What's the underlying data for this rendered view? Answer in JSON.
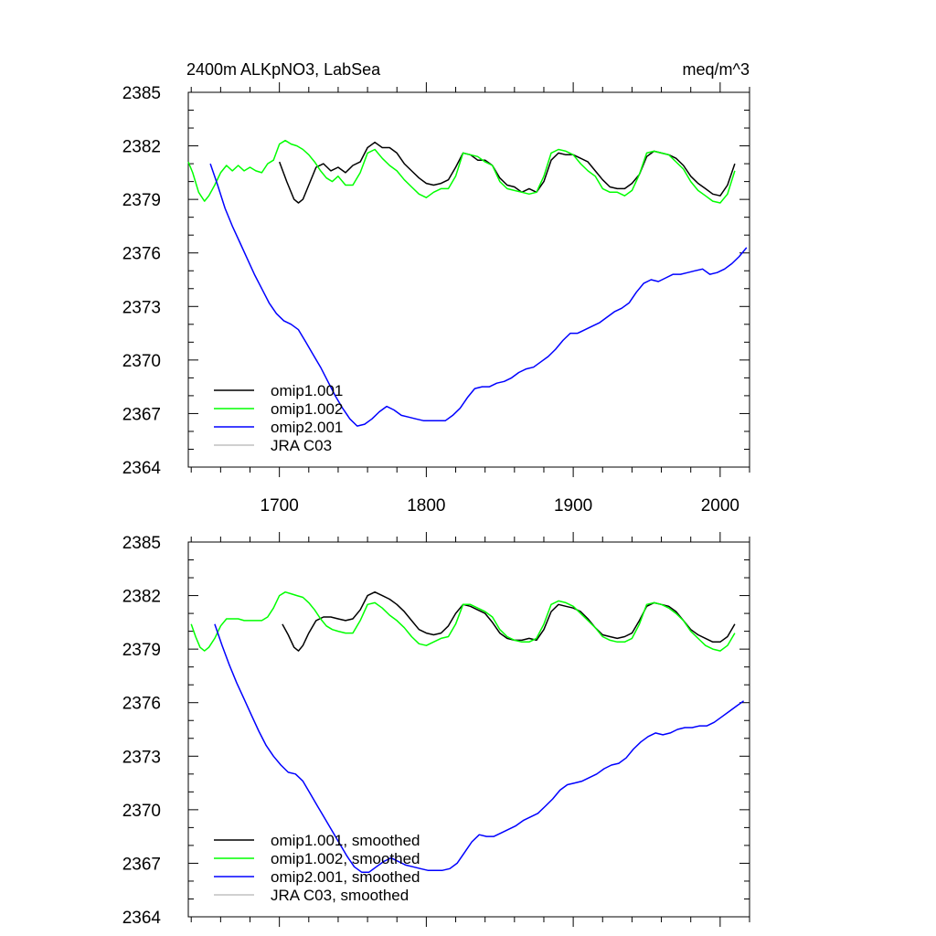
{
  "figure": {
    "title_left": "2400m ALKpNO3, LabSea",
    "title_right": "meq/m^3"
  },
  "chart_data": [
    {
      "type": "line",
      "title": "2400m ALKpNO3, LabSea",
      "units": "meq/m^3",
      "xlim": [
        1638,
        2020
      ],
      "ylim": [
        2364,
        2385
      ],
      "x_ticks": [
        1700,
        1800,
        1900,
        2000
      ],
      "x_tick_labels": [
        "1700",
        "1800",
        "1900",
        "2000"
      ],
      "y_ticks": [
        2364,
        2367,
        2370,
        2373,
        2376,
        2379,
        2382,
        2385
      ],
      "y_tick_labels": [
        "2364",
        "2367",
        "2370",
        "2373",
        "2376",
        "2379",
        "2382",
        "2385"
      ],
      "legend_position": "lower-left",
      "series": [
        {
          "name": "omip1.001",
          "color": "#000000",
          "x": [
            1700,
            1705,
            1710,
            1713,
            1716,
            1720,
            1725,
            1730,
            1735,
            1740,
            1745,
            1750,
            1755,
            1760,
            1765,
            1770,
            1775,
            1780,
            1785,
            1790,
            1795,
            1800,
            1805,
            1810,
            1815,
            1820,
            1825,
            1830,
            1835,
            1840,
            1845,
            1850,
            1855,
            1860,
            1865,
            1870,
            1875,
            1880,
            1885,
            1890,
            1895,
            1900,
            1905,
            1910,
            1915,
            1920,
            1925,
            1930,
            1935,
            1940,
            1945,
            1950,
            1955,
            1960,
            1965,
            1970,
            1975,
            1980,
            1985,
            1990,
            1995,
            2000,
            2005,
            2010
          ],
          "y": [
            2381.1,
            2380.0,
            2379.0,
            2378.8,
            2379.0,
            2379.8,
            2380.8,
            2381.0,
            2380.6,
            2380.8,
            2380.5,
            2380.9,
            2381.1,
            2381.9,
            2382.2,
            2381.9,
            2381.9,
            2381.6,
            2381.0,
            2380.6,
            2380.2,
            2379.9,
            2379.8,
            2379.9,
            2380.1,
            2380.8,
            2381.6,
            2381.5,
            2381.2,
            2381.2,
            2380.9,
            2380.2,
            2379.8,
            2379.7,
            2379.4,
            2379.6,
            2379.4,
            2380.0,
            2381.2,
            2381.6,
            2381.5,
            2381.5,
            2381.3,
            2381.1,
            2380.6,
            2380.1,
            2379.7,
            2379.6,
            2379.6,
            2379.9,
            2380.4,
            2381.4,
            2381.7,
            2381.6,
            2381.5,
            2381.3,
            2380.9,
            2380.3,
            2379.9,
            2379.6,
            2379.3,
            2379.2,
            2379.8,
            2381.0
          ]
        },
        {
          "name": "omip1.002",
          "color": "#00ff00",
          "x": [
            1638,
            1641,
            1645,
            1649,
            1652,
            1656,
            1660,
            1664,
            1668,
            1672,
            1676,
            1680,
            1684,
            1688,
            1692,
            1696,
            1700,
            1704,
            1708,
            1712,
            1716,
            1720,
            1724,
            1728,
            1732,
            1736,
            1740,
            1745,
            1750,
            1755,
            1760,
            1765,
            1770,
            1775,
            1780,
            1785,
            1790,
            1795,
            1800,
            1805,
            1810,
            1815,
            1820,
            1825,
            1830,
            1835,
            1840,
            1845,
            1850,
            1855,
            1860,
            1865,
            1870,
            1875,
            1880,
            1885,
            1890,
            1895,
            1900,
            1905,
            1910,
            1915,
            1920,
            1925,
            1930,
            1935,
            1940,
            1945,
            1950,
            1955,
            1960,
            1965,
            1970,
            1975,
            1980,
            1985,
            1990,
            1995,
            2000,
            2005,
            2010
          ],
          "y": [
            2381.1,
            2380.5,
            2379.4,
            2378.9,
            2379.2,
            2379.8,
            2380.5,
            2380.9,
            2380.6,
            2380.9,
            2380.6,
            2380.8,
            2380.6,
            2380.5,
            2381.0,
            2381.2,
            2382.1,
            2382.3,
            2382.1,
            2382.0,
            2381.8,
            2381.5,
            2381.1,
            2380.6,
            2380.2,
            2380.0,
            2380.3,
            2379.8,
            2379.8,
            2380.5,
            2381.6,
            2381.8,
            2381.3,
            2380.9,
            2380.6,
            2380.1,
            2379.7,
            2379.3,
            2379.1,
            2379.4,
            2379.6,
            2379.6,
            2380.3,
            2381.6,
            2381.5,
            2381.4,
            2381.1,
            2380.9,
            2380.0,
            2379.6,
            2379.5,
            2379.4,
            2379.3,
            2379.4,
            2380.3,
            2381.6,
            2381.8,
            2381.7,
            2381.5,
            2381.0,
            2380.6,
            2380.3,
            2379.6,
            2379.4,
            2379.4,
            2379.2,
            2379.5,
            2380.4,
            2381.6,
            2381.7,
            2381.6,
            2381.5,
            2381.1,
            2380.7,
            2380.0,
            2379.5,
            2379.2,
            2378.9,
            2378.8,
            2379.3,
            2380.6
          ]
        },
        {
          "name": "omip2.001",
          "color": "#0000ff",
          "x": [
            1653,
            1658,
            1663,
            1668,
            1673,
            1678,
            1683,
            1688,
            1693,
            1698,
            1703,
            1708,
            1713,
            1718,
            1723,
            1728,
            1733,
            1738,
            1743,
            1748,
            1753,
            1758,
            1763,
            1768,
            1773,
            1778,
            1783,
            1788,
            1793,
            1798,
            1803,
            1808,
            1813,
            1818,
            1823,
            1828,
            1833,
            1838,
            1843,
            1848,
            1853,
            1858,
            1863,
            1868,
            1873,
            1878,
            1883,
            1888,
            1893,
            1898,
            1903,
            1908,
            1913,
            1918,
            1923,
            1928,
            1933,
            1938,
            1943,
            1948,
            1953,
            1958,
            1963,
            1968,
            1973,
            1978,
            1983,
            1988,
            1993,
            1998,
            2003,
            2008,
            2013,
            2018
          ],
          "y": [
            2381.0,
            2379.8,
            2378.5,
            2377.5,
            2376.6,
            2375.7,
            2374.8,
            2374.0,
            2373.2,
            2372.6,
            2372.2,
            2372.0,
            2371.7,
            2371.0,
            2370.3,
            2369.6,
            2368.8,
            2368.0,
            2367.3,
            2366.7,
            2366.3,
            2366.4,
            2366.7,
            2367.1,
            2367.4,
            2367.2,
            2366.9,
            2366.8,
            2366.7,
            2366.6,
            2366.6,
            2366.6,
            2366.6,
            2366.9,
            2367.3,
            2367.9,
            2368.4,
            2368.5,
            2368.5,
            2368.7,
            2368.8,
            2369.0,
            2369.3,
            2369.5,
            2369.6,
            2369.9,
            2370.2,
            2370.6,
            2371.1,
            2371.5,
            2371.5,
            2371.7,
            2371.9,
            2372.1,
            2372.4,
            2372.7,
            2372.9,
            2373.2,
            2373.8,
            2374.3,
            2374.5,
            2374.4,
            2374.6,
            2374.8,
            2374.8,
            2374.9,
            2375.0,
            2375.1,
            2374.8,
            2374.9,
            2375.1,
            2375.4,
            2375.8,
            2376.3
          ]
        },
        {
          "name": "JRA C03",
          "color": "#c0c0c0",
          "x": [],
          "y": []
        }
      ]
    },
    {
      "type": "line",
      "xlim": [
        1638,
        2020
      ],
      "ylim": [
        2364,
        2385
      ],
      "x_ticks": [
        1700,
        1800,
        1900,
        2000
      ],
      "y_ticks": [
        2364,
        2367,
        2370,
        2373,
        2376,
        2379,
        2382,
        2385
      ],
      "y_tick_labels": [
        "2364",
        "2367",
        "2370",
        "2373",
        "2376",
        "2379",
        "2382",
        "2385"
      ],
      "legend_position": "lower-left",
      "series": [
        {
          "name": "omip1.001, smoothed",
          "color": "#000000",
          "x": [
            1702,
            1706,
            1710,
            1713,
            1716,
            1720,
            1725,
            1730,
            1735,
            1740,
            1745,
            1750,
            1755,
            1760,
            1765,
            1770,
            1775,
            1780,
            1785,
            1790,
            1795,
            1800,
            1805,
            1810,
            1815,
            1820,
            1825,
            1830,
            1835,
            1840,
            1845,
            1850,
            1855,
            1860,
            1865,
            1870,
            1875,
            1880,
            1885,
            1890,
            1895,
            1900,
            1905,
            1910,
            1915,
            1920,
            1925,
            1930,
            1935,
            1940,
            1945,
            1950,
            1955,
            1960,
            1965,
            1970,
            1975,
            1980,
            1985,
            1990,
            1995,
            2000,
            2005,
            2010
          ],
          "y": [
            2380.4,
            2379.8,
            2379.1,
            2378.9,
            2379.2,
            2379.9,
            2380.6,
            2380.8,
            2380.8,
            2380.7,
            2380.6,
            2380.7,
            2381.2,
            2382.0,
            2382.2,
            2382.0,
            2381.8,
            2381.5,
            2381.1,
            2380.6,
            2380.1,
            2379.9,
            2379.8,
            2379.9,
            2380.3,
            2381.0,
            2381.5,
            2381.4,
            2381.2,
            2381.0,
            2380.5,
            2379.9,
            2379.6,
            2379.5,
            2379.5,
            2379.6,
            2379.5,
            2380.1,
            2381.1,
            2381.5,
            2381.4,
            2381.3,
            2381.1,
            2380.7,
            2380.2,
            2379.8,
            2379.7,
            2379.6,
            2379.7,
            2379.9,
            2380.6,
            2381.4,
            2381.6,
            2381.5,
            2381.4,
            2381.1,
            2380.6,
            2380.1,
            2379.8,
            2379.6,
            2379.4,
            2379.4,
            2379.7,
            2380.4
          ]
        },
        {
          "name": "omip1.002, smoothed",
          "color": "#00ff00",
          "x": [
            1640,
            1643,
            1646,
            1649,
            1652,
            1656,
            1660,
            1664,
            1668,
            1672,
            1676,
            1680,
            1684,
            1688,
            1692,
            1696,
            1700,
            1704,
            1708,
            1712,
            1716,
            1720,
            1724,
            1728,
            1732,
            1736,
            1740,
            1745,
            1750,
            1755,
            1760,
            1765,
            1770,
            1775,
            1780,
            1785,
            1790,
            1795,
            1800,
            1805,
            1810,
            1815,
            1820,
            1825,
            1830,
            1835,
            1840,
            1845,
            1850,
            1855,
            1860,
            1865,
            1870,
            1875,
            1880,
            1885,
            1890,
            1895,
            1900,
            1905,
            1910,
            1915,
            1920,
            1925,
            1930,
            1935,
            1940,
            1945,
            1950,
            1955,
            1960,
            1965,
            1970,
            1975,
            1980,
            1985,
            1990,
            1995,
            2000,
            2005,
            2010
          ],
          "y": [
            2380.4,
            2379.7,
            2379.1,
            2378.9,
            2379.1,
            2379.6,
            2380.3,
            2380.7,
            2380.7,
            2380.7,
            2380.6,
            2380.6,
            2380.6,
            2380.6,
            2380.8,
            2381.3,
            2382.0,
            2382.2,
            2382.1,
            2382.0,
            2381.9,
            2381.6,
            2381.2,
            2380.7,
            2380.3,
            2380.1,
            2380.0,
            2379.9,
            2379.9,
            2380.6,
            2381.5,
            2381.6,
            2381.3,
            2380.9,
            2380.6,
            2380.2,
            2379.7,
            2379.3,
            2379.2,
            2379.4,
            2379.6,
            2379.7,
            2380.4,
            2381.5,
            2381.5,
            2381.3,
            2381.1,
            2380.8,
            2380.1,
            2379.7,
            2379.5,
            2379.4,
            2379.4,
            2379.6,
            2380.4,
            2381.5,
            2381.7,
            2381.6,
            2381.4,
            2381.0,
            2380.6,
            2380.2,
            2379.7,
            2379.5,
            2379.4,
            2379.4,
            2379.6,
            2380.4,
            2381.5,
            2381.6,
            2381.5,
            2381.3,
            2381.0,
            2380.6,
            2380.0,
            2379.6,
            2379.2,
            2379.0,
            2378.9,
            2379.2,
            2379.9
          ]
        },
        {
          "name": "omip2.001, smoothed",
          "color": "#0000ff",
          "x": [
            1656,
            1661,
            1666,
            1671,
            1676,
            1681,
            1686,
            1691,
            1696,
            1701,
            1706,
            1711,
            1716,
            1721,
            1726,
            1731,
            1736,
            1741,
            1746,
            1751,
            1756,
            1761,
            1766,
            1771,
            1776,
            1781,
            1786,
            1791,
            1796,
            1801,
            1806,
            1811,
            1816,
            1821,
            1826,
            1831,
            1836,
            1841,
            1846,
            1851,
            1856,
            1861,
            1866,
            1871,
            1876,
            1881,
            1886,
            1891,
            1896,
            1901,
            1906,
            1911,
            1916,
            1921,
            1926,
            1931,
            1936,
            1941,
            1946,
            1951,
            1956,
            1961,
            1966,
            1971,
            1976,
            1981,
            1986,
            1991,
            1996,
            2001,
            2006,
            2011,
            2016
          ],
          "y": [
            2380.4,
            2379.2,
            2378.1,
            2377.1,
            2376.2,
            2375.3,
            2374.4,
            2373.6,
            2373.0,
            2372.5,
            2372.1,
            2372.0,
            2371.6,
            2370.9,
            2370.2,
            2369.5,
            2368.8,
            2368.1,
            2367.4,
            2366.8,
            2366.5,
            2366.5,
            2366.8,
            2367.1,
            2367.3,
            2367.1,
            2366.9,
            2366.8,
            2366.7,
            2366.6,
            2366.6,
            2366.6,
            2366.7,
            2367.0,
            2367.6,
            2368.2,
            2368.6,
            2368.5,
            2368.5,
            2368.7,
            2368.9,
            2369.1,
            2369.4,
            2369.6,
            2369.8,
            2370.2,
            2370.6,
            2371.1,
            2371.4,
            2371.5,
            2371.6,
            2371.8,
            2372.0,
            2372.3,
            2372.5,
            2372.6,
            2372.9,
            2373.4,
            2373.8,
            2374.1,
            2374.3,
            2374.2,
            2374.3,
            2374.5,
            2374.6,
            2374.6,
            2374.7,
            2374.7,
            2374.9,
            2375.2,
            2375.5,
            2375.8,
            2376.1
          ]
        },
        {
          "name": "JRA C03, smoothed",
          "color": "#c0c0c0",
          "x": [],
          "y": []
        }
      ]
    }
  ]
}
